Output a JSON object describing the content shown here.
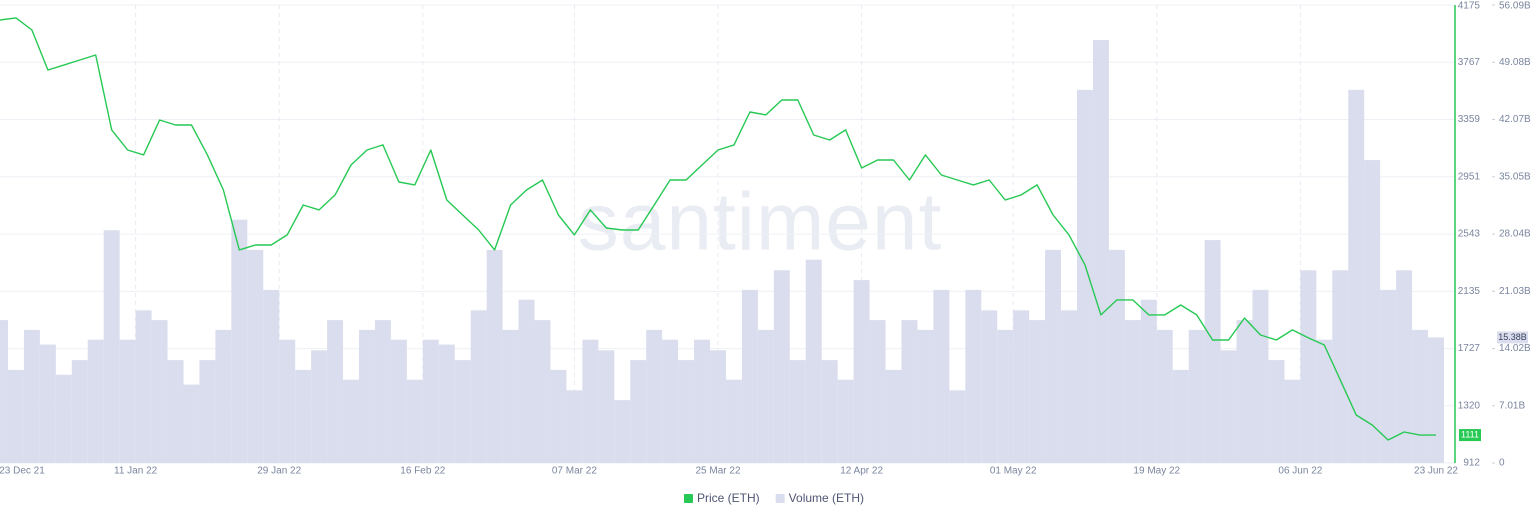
{
  "chart_data": {
    "type": "combo",
    "watermark": "santiment",
    "x": [
      "2021-12-25",
      "2021-12-27",
      "2021-12-29",
      "2021-12-31",
      "2022-01-02",
      "2022-01-04",
      "2022-01-06",
      "2022-01-08",
      "2022-01-10",
      "2022-01-12",
      "2022-01-14",
      "2022-01-16",
      "2022-01-18",
      "2022-01-20",
      "2022-01-22",
      "2022-01-24",
      "2022-01-26",
      "2022-01-28",
      "2022-01-30",
      "2022-02-01",
      "2022-02-03",
      "2022-02-05",
      "2022-02-07",
      "2022-02-09",
      "2022-02-11",
      "2022-02-13",
      "2022-02-15",
      "2022-02-17",
      "2022-02-19",
      "2022-02-21",
      "2022-02-23",
      "2022-02-25",
      "2022-02-27",
      "2022-03-01",
      "2022-03-03",
      "2022-03-05",
      "2022-03-07",
      "2022-03-09",
      "2022-03-11",
      "2022-03-13",
      "2022-03-15",
      "2022-03-17",
      "2022-03-19",
      "2022-03-21",
      "2022-03-23",
      "2022-03-25",
      "2022-03-27",
      "2022-03-29",
      "2022-03-31",
      "2022-04-02",
      "2022-04-04",
      "2022-04-06",
      "2022-04-08",
      "2022-04-10",
      "2022-04-12",
      "2022-04-14",
      "2022-04-16",
      "2022-04-18",
      "2022-04-20",
      "2022-04-22",
      "2022-04-24",
      "2022-04-26",
      "2022-04-28",
      "2022-04-30",
      "2022-05-02",
      "2022-05-04",
      "2022-05-06",
      "2022-05-08",
      "2022-05-10",
      "2022-05-12",
      "2022-05-14",
      "2022-05-16",
      "2022-05-18",
      "2022-05-20",
      "2022-05-22",
      "2022-05-24",
      "2022-05-26",
      "2022-05-28",
      "2022-05-30",
      "2022-06-01",
      "2022-06-03",
      "2022-06-05",
      "2022-06-07",
      "2022-06-09",
      "2022-06-11",
      "2022-06-13",
      "2022-06-15",
      "2022-06-17",
      "2022-06-19",
      "2022-06-21",
      "2022-06-23"
    ],
    "xlim": [
      "2021-12-25",
      "2022-06-23"
    ],
    "xticks": [
      {
        "value": "2021-12-23",
        "label": "23 Dec 21"
      },
      {
        "value": "2022-01-11",
        "label": "11 Jan 22"
      },
      {
        "value": "2022-01-29",
        "label": "29 Jan 22"
      },
      {
        "value": "2022-02-16",
        "label": "16 Feb 22"
      },
      {
        "value": "2022-03-07",
        "label": "07 Mar 22"
      },
      {
        "value": "2022-03-25",
        "label": "25 Mar 22"
      },
      {
        "value": "2022-04-12",
        "label": "12 Apr 22"
      },
      {
        "value": "2022-05-01",
        "label": "01 May 22"
      },
      {
        "value": "2022-05-19",
        "label": "19 May 22"
      },
      {
        "value": "2022-06-06",
        "label": "06 Jun 22"
      },
      {
        "value": "2022-06-23",
        "label": "23 Jun 22"
      }
    ],
    "ylim": [
      912,
      4175
    ],
    "yticks": [
      912,
      1320,
      1727,
      2135,
      2543,
      2951,
      3359,
      3767,
      4175
    ],
    "y2lim": [
      0,
      56.09
    ],
    "y2ticks": [
      0,
      {
        "value": 7.01,
        "label": "7.01B"
      },
      {
        "value": 14.02,
        "label": "14.02B"
      },
      {
        "value": 21.03,
        "label": "21.03B"
      },
      {
        "value": 28.04,
        "label": "28.04B"
      },
      {
        "value": 35.05,
        "label": "35.05B"
      },
      {
        "value": 42.07,
        "label": "42.07B"
      },
      {
        "value": 49.08,
        "label": "49.08B"
      },
      {
        "value": 56.09,
        "label": "56.09B"
      }
    ],
    "grid": true,
    "legend": "bottom",
    "series": [
      {
        "name": "Price (ETH)",
        "type": "line",
        "color": "#26c953",
        "current": 1111,
        "values": [
          4068,
          4083,
          3997,
          3712,
          3747,
          3783,
          3819,
          3285,
          3142,
          3107,
          3356,
          3320,
          3320,
          3107,
          2857,
          2430,
          2465,
          2465,
          2537,
          2750,
          2715,
          2822,
          3035,
          3142,
          3178,
          2914,
          2893,
          3142,
          2786,
          2679,
          2572,
          2430,
          2750,
          2857,
          2928,
          2679,
          2537,
          2715,
          2586,
          2572,
          2572,
          2750,
          2928,
          2928,
          3035,
          3142,
          3178,
          3413,
          3392,
          3498,
          3498,
          3249,
          3213,
          3285,
          3014,
          3071,
          3071,
          2928,
          3107,
          2964,
          2928,
          2893,
          2928,
          2786,
          2822,
          2893,
          2679,
          2537,
          2323,
          1967,
          2074,
          2074,
          1967,
          1967,
          2038,
          1967,
          1788,
          1788,
          1945,
          1824,
          1788,
          1860,
          1803,
          1753,
          1503,
          1254,
          1183,
          1076,
          1133,
          1111,
          1111
        ]
      },
      {
        "name": "Volume (ETH)",
        "type": "bar",
        "axis": "y2",
        "color": "#dadded",
        "current": {
          "value": 15.38,
          "label": "15.38B"
        },
        "values": [
          17.5,
          11.4,
          16.3,
          14.5,
          10.8,
          12.6,
          15.1,
          28.5,
          15.1,
          18.7,
          17.5,
          12.6,
          9.6,
          12.6,
          16.3,
          29.8,
          26.1,
          21.2,
          15.1,
          11.4,
          13.8,
          17.5,
          10.2,
          16.3,
          17.5,
          15.1,
          10.2,
          15.1,
          14.5,
          12.6,
          18.7,
          26.1,
          16.3,
          20.0,
          17.5,
          11.4,
          8.9,
          15.1,
          13.8,
          7.7,
          12.6,
          16.3,
          15.1,
          12.6,
          15.1,
          13.8,
          10.2,
          21.2,
          16.3,
          23.6,
          12.6,
          24.9,
          12.6,
          10.2,
          22.4,
          17.5,
          11.4,
          17.5,
          16.3,
          21.2,
          8.9,
          21.2,
          18.7,
          16.3,
          18.7,
          17.5,
          26.1,
          18.7,
          45.7,
          51.8,
          26.1,
          17.5,
          20.0,
          16.3,
          11.4,
          16.3,
          27.3,
          13.8,
          17.5,
          21.2,
          12.6,
          10.2,
          23.6,
          15.1,
          23.6,
          45.7,
          37.1,
          21.2,
          23.6,
          16.3,
          15.38
        ]
      }
    ]
  }
}
